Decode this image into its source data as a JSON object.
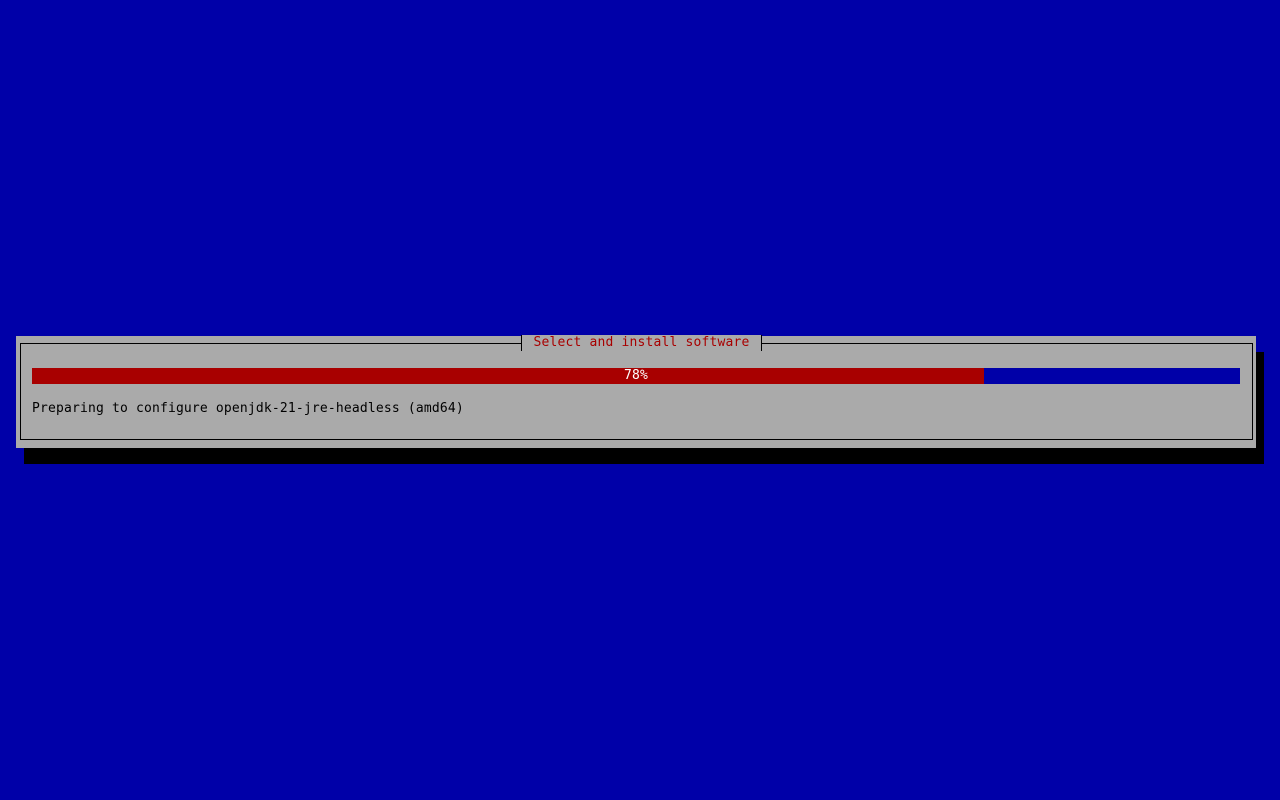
{
  "dialog": {
    "title": "Select and install software",
    "progress_percent": 78,
    "progress_label": "78%",
    "message": "Preparing to configure openjdk-21-jre-headless (amd64)"
  },
  "colors": {
    "background": "#0000a8",
    "dialog": "#aaaaaa",
    "progress_fill": "#a80000",
    "title_text": "#a80000"
  }
}
